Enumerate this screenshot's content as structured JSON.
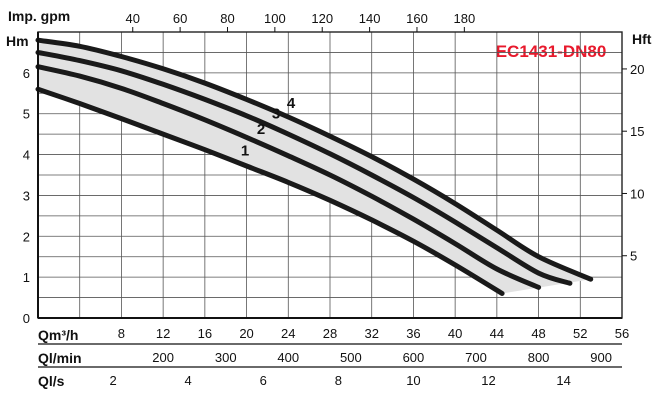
{
  "chart_data": {
    "type": "line",
    "title": "EC1431-DN80",
    "title_color": "#e8192c",
    "grid": true,
    "fill_color": "#e2e2e2",
    "curve_color": "#1a1a1a",
    "xlabel": "Qm³/h",
    "ylabel": "Hm",
    "y2label": "Hft",
    "top_axis_label": "Imp. gpm",
    "xlim": [
      0,
      56
    ],
    "ylim": [
      0,
      7
    ],
    "x_ticks": [
      "8",
      "12",
      "16",
      "20",
      "24",
      "28",
      "32",
      "36",
      "40",
      "44",
      "48",
      "52",
      "56"
    ],
    "y_ticks": [
      "0",
      "1",
      "2",
      "3",
      "4",
      "5",
      "6"
    ],
    "hft_ticks": [
      "5",
      "10",
      "15",
      "20"
    ],
    "gpm_ticks": [
      "40",
      "60",
      "80",
      "100",
      "120",
      "140",
      "160",
      "180"
    ],
    "qlmin_label": "Ql/min",
    "qlmin_ticks": [
      "200",
      "300",
      "400",
      "500",
      "600",
      "700",
      "800",
      "900"
    ],
    "qls_label": "Ql/s",
    "qls_ticks": [
      "2",
      "4",
      "6",
      "8",
      "10",
      "12",
      "14"
    ],
    "series": [
      {
        "name": "1",
        "x": [
          0,
          4,
          8,
          12,
          16,
          20,
          24,
          28,
          32,
          36,
          40,
          44.5
        ],
        "y": [
          5.6,
          5.25,
          4.88,
          4.5,
          4.12,
          3.72,
          3.32,
          2.88,
          2.4,
          1.88,
          1.3,
          0.6
        ]
      },
      {
        "name": "2",
        "x": [
          0,
          4,
          8,
          12,
          16,
          20,
          24,
          28,
          32,
          36,
          40,
          44,
          48
        ],
        "y": [
          6.15,
          5.92,
          5.62,
          5.25,
          4.85,
          4.42,
          3.97,
          3.5,
          2.98,
          2.42,
          1.82,
          1.2,
          0.75
        ]
      },
      {
        "name": "3",
        "x": [
          0,
          4,
          8,
          12,
          16,
          20,
          24,
          28,
          32,
          36,
          40,
          44,
          48,
          51
        ],
        "y": [
          6.5,
          6.3,
          6.05,
          5.72,
          5.35,
          4.95,
          4.5,
          4.02,
          3.5,
          2.95,
          2.35,
          1.72,
          1.1,
          0.85
        ]
      },
      {
        "name": "4",
        "x": [
          0,
          4,
          8,
          12,
          16,
          20,
          24,
          28,
          32,
          36,
          40,
          44,
          48,
          53
        ],
        "y": [
          6.8,
          6.65,
          6.4,
          6.1,
          5.75,
          5.35,
          4.92,
          4.45,
          3.95,
          3.4,
          2.8,
          2.15,
          1.5,
          0.95
        ]
      }
    ],
    "curve_labels": [
      "1",
      "2",
      "3",
      "4"
    ]
  }
}
